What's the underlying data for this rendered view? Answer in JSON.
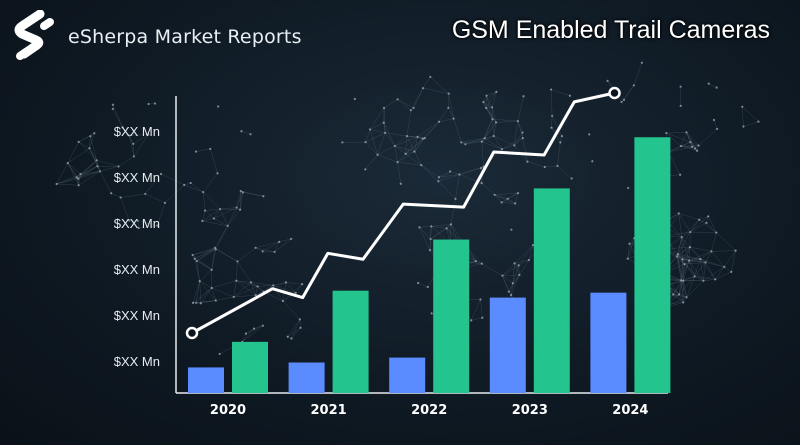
{
  "header": {
    "brand": "eSherpa Market Reports",
    "title": "GSM Enabled Trail Cameras",
    "logo_icon": "esherpa-s-logo-icon"
  },
  "chart_data": {
    "type": "bar",
    "categories": [
      "2020",
      "2021",
      "2022",
      "2023",
      "2024"
    ],
    "series": [
      {
        "color": "#5b8cff",
        "values": [
          26,
          31,
          36,
          97,
          102
        ]
      },
      {
        "color": "#23c48e",
        "values": [
          52,
          104,
          156,
          208,
          260
        ]
      }
    ],
    "trend_line": {
      "color": "#ffffff",
      "x": [
        2020,
        2020.8,
        2021.1,
        2021.35,
        2021.7,
        2022.1,
        2022.7,
        2023.0,
        2023.5,
        2023.8,
        2024.2
      ],
      "y": [
        61,
        106,
        97,
        142,
        136,
        192,
        189,
        245,
        242,
        296,
        305
      ]
    },
    "y_tick_labels": [
      "$XX Mn",
      "$XX Mn",
      "$XX Mn",
      "$XX Mn",
      "$XX Mn",
      "$XX Mn"
    ],
    "ylim": [
      0,
      305
    ],
    "grid": false,
    "background": "#0d1620"
  }
}
